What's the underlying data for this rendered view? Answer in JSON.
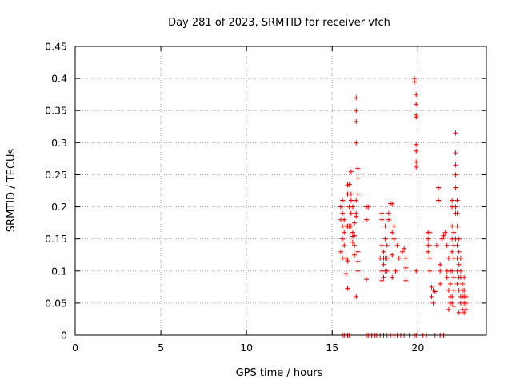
{
  "chart_data": {
    "type": "scatter",
    "title": "Day 281 of 2023, SRMTID for receiver vfch",
    "xlabel": "GPS time / hours",
    "ylabel": "SRMTID / TECUs",
    "xlim": [
      0,
      24
    ],
    "ylim": [
      0,
      0.45
    ],
    "grid": true,
    "grid_style": "dotted",
    "marker": "+",
    "color": "#ff0000",
    "x_ticks": [
      {
        "value": 0,
        "label": "0"
      },
      {
        "value": 5,
        "label": "5"
      },
      {
        "value": 10,
        "label": "10"
      },
      {
        "value": 15,
        "label": "15"
      },
      {
        "value": 20,
        "label": "20"
      }
    ],
    "y_ticks": [
      {
        "value": 0,
        "label": "0"
      },
      {
        "value": 0.05,
        "label": "0.05"
      },
      {
        "value": 0.1,
        "label": "0.1"
      },
      {
        "value": 0.15,
        "label": "0.15"
      },
      {
        "value": 0.2,
        "label": "0.2"
      },
      {
        "value": 0.25,
        "label": "0.25"
      },
      {
        "value": 0.3,
        "label": "0.3"
      },
      {
        "value": 0.35,
        "label": "0.35"
      },
      {
        "value": 0.4,
        "label": "0.4"
      },
      {
        "value": 0.45,
        "label": "0.45"
      }
    ],
    "points": [
      [
        15.5,
        0.2
      ],
      [
        15.5,
        0.18
      ],
      [
        15.5,
        0.13
      ],
      [
        15.6,
        0.21
      ],
      [
        15.6,
        0.19
      ],
      [
        15.6,
        0.17
      ],
      [
        15.6,
        0.15
      ],
      [
        15.6,
        0.12
      ],
      [
        15.7,
        0.18
      ],
      [
        15.7,
        0.16
      ],
      [
        15.7,
        0.14
      ],
      [
        15.8,
        0.17
      ],
      [
        15.8,
        0.12
      ],
      [
        15.8,
        0.096
      ],
      [
        15.9,
        0.22
      ],
      [
        15.9,
        0.17
      ],
      [
        15.9,
        0.116
      ],
      [
        15.9,
        0.073
      ],
      [
        15.9,
        0.234
      ],
      [
        16.0,
        0.235
      ],
      [
        16.0,
        0.2
      ],
      [
        16.0,
        0.17
      ],
      [
        16.1,
        0.255
      ],
      [
        16.1,
        0.22
      ],
      [
        16.1,
        0.21
      ],
      [
        16.1,
        0.19
      ],
      [
        16.1,
        0.17
      ],
      [
        16.2,
        0.2
      ],
      [
        16.2,
        0.16
      ],
      [
        16.2,
        0.154
      ],
      [
        16.2,
        0.145
      ],
      [
        16.3,
        0.175
      ],
      [
        16.3,
        0.155
      ],
      [
        16.3,
        0.14
      ],
      [
        16.3,
        0.125
      ],
      [
        16.4,
        0.37
      ],
      [
        16.4,
        0.35
      ],
      [
        16.4,
        0.333
      ],
      [
        16.4,
        0.3
      ],
      [
        16.4,
        0.21
      ],
      [
        16.4,
        0.19
      ],
      [
        16.4,
        0.185
      ],
      [
        16.5,
        0.26
      ],
      [
        16.5,
        0.245
      ],
      [
        16.5,
        0.22
      ],
      [
        16.5,
        0.13
      ],
      [
        16.5,
        0.1
      ],
      [
        16.5,
        0.115
      ],
      [
        16.4,
        0.06
      ],
      [
        17.0,
        0.2
      ],
      [
        17.1,
        0.2
      ],
      [
        17.0,
        0.087
      ],
      [
        17.0,
        0.18
      ],
      [
        17.9,
        0.19
      ],
      [
        17.9,
        0.18
      ],
      [
        17.8,
        0.12
      ],
      [
        17.9,
        0.14
      ],
      [
        17.9,
        0.1
      ],
      [
        17.9,
        0.085
      ],
      [
        18.0,
        0.13
      ],
      [
        18.0,
        0.11
      ],
      [
        18.0,
        0.09
      ],
      [
        18.0,
        0.12
      ],
      [
        18.1,
        0.17
      ],
      [
        18.1,
        0.15
      ],
      [
        18.1,
        0.12
      ],
      [
        18.1,
        0.1
      ],
      [
        18.2,
        0.14
      ],
      [
        18.2,
        0.12
      ],
      [
        18.2,
        0.1
      ],
      [
        18.3,
        0.19
      ],
      [
        18.3,
        0.18
      ],
      [
        18.4,
        0.205
      ],
      [
        18.5,
        0.205
      ],
      [
        18.5,
        0.16
      ],
      [
        18.5,
        0.125
      ],
      [
        18.5,
        0.09
      ],
      [
        18.6,
        0.17
      ],
      [
        18.6,
        0.15
      ],
      [
        18.7,
        0.1
      ],
      [
        18.8,
        0.14
      ],
      [
        18.9,
        0.12
      ],
      [
        19.1,
        0.13
      ],
      [
        19.2,
        0.135
      ],
      [
        19.3,
        0.12
      ],
      [
        19.3,
        0.105
      ],
      [
        19.3,
        0.085
      ],
      [
        19.8,
        0.4
      ],
      [
        19.8,
        0.395
      ],
      [
        19.9,
        0.375
      ],
      [
        19.9,
        0.36
      ],
      [
        19.9,
        0.343
      ],
      [
        19.9,
        0.34
      ],
      [
        19.9,
        0.297
      ],
      [
        19.9,
        0.287
      ],
      [
        19.9,
        0.27
      ],
      [
        19.9,
        0.262
      ],
      [
        19.9,
        0.1
      ],
      [
        20.6,
        0.16
      ],
      [
        20.6,
        0.15
      ],
      [
        20.6,
        0.14
      ],
      [
        20.6,
        0.13
      ],
      [
        20.7,
        0.16
      ],
      [
        20.7,
        0.14
      ],
      [
        20.7,
        0.12
      ],
      [
        20.7,
        0.1
      ],
      [
        20.8,
        0.075
      ],
      [
        20.8,
        0.06
      ],
      [
        20.9,
        0.07
      ],
      [
        20.9,
        0.05
      ],
      [
        21.0,
        0.068
      ],
      [
        21.1,
        0.14
      ],
      [
        21.2,
        0.23
      ],
      [
        21.2,
        0.21
      ],
      [
        21.3,
        0.11
      ],
      [
        21.3,
        0.1
      ],
      [
        21.3,
        0.08
      ],
      [
        21.4,
        0.15
      ],
      [
        21.5,
        0.155
      ],
      [
        21.6,
        0.16
      ],
      [
        21.7,
        0.14
      ],
      [
        21.7,
        0.1
      ],
      [
        21.7,
        0.09
      ],
      [
        21.8,
        0.12
      ],
      [
        21.8,
        0.07
      ],
      [
        21.8,
        0.04
      ],
      [
        21.9,
        0.08
      ],
      [
        21.9,
        0.06
      ],
      [
        21.9,
        0.05
      ],
      [
        21.9,
        0.1
      ],
      [
        22.0,
        0.21
      ],
      [
        22.0,
        0.2
      ],
      [
        22.0,
        0.17
      ],
      [
        22.0,
        0.15
      ],
      [
        22.0,
        0.13
      ],
      [
        22.0,
        0.1
      ],
      [
        22.1,
        0.16
      ],
      [
        22.1,
        0.14
      ],
      [
        22.1,
        0.12
      ],
      [
        22.1,
        0.09
      ],
      [
        22.1,
        0.07
      ],
      [
        22.2,
        0.315
      ],
      [
        22.2,
        0.284
      ],
      [
        22.2,
        0.265
      ],
      [
        22.2,
        0.25
      ],
      [
        22.2,
        0.23
      ],
      [
        22.2,
        0.2
      ],
      [
        22.2,
        0.19
      ],
      [
        22.2,
        0.15
      ],
      [
        22.3,
        0.21
      ],
      [
        22.3,
        0.19
      ],
      [
        22.3,
        0.17
      ],
      [
        22.3,
        0.14
      ],
      [
        22.3,
        0.12
      ],
      [
        22.3,
        0.1
      ],
      [
        22.3,
        0.08
      ],
      [
        22.4,
        0.15
      ],
      [
        22.4,
        0.13
      ],
      [
        22.4,
        0.11
      ],
      [
        22.4,
        0.09
      ],
      [
        22.4,
        0.07
      ],
      [
        22.5,
        0.12
      ],
      [
        22.5,
        0.1
      ],
      [
        22.5,
        0.09
      ],
      [
        22.5,
        0.06
      ],
      [
        22.5,
        0.05
      ],
      [
        22.6,
        0.08
      ],
      [
        22.6,
        0.07
      ],
      [
        22.6,
        0.06
      ],
      [
        22.6,
        0.04
      ],
      [
        22.7,
        0.09
      ],
      [
        22.7,
        0.07
      ],
      [
        22.7,
        0.06
      ],
      [
        22.7,
        0.05
      ],
      [
        22.8,
        0.06
      ],
      [
        22.8,
        0.05
      ],
      [
        22.8,
        0.04
      ],
      [
        22.0,
        0.06
      ],
      [
        22.0,
        0.05
      ],
      [
        22.1,
        0.045
      ],
      [
        22.4,
        0.035
      ],
      [
        22.7,
        0.035
      ],
      [
        15.6,
        0
      ],
      [
        15.7,
        0
      ],
      [
        15.9,
        0
      ],
      [
        16.0,
        0
      ],
      [
        17.0,
        0
      ],
      [
        17.1,
        0
      ],
      [
        17.3,
        0
      ],
      [
        17.5,
        0
      ],
      [
        17.6,
        0
      ],
      [
        17.8,
        0
      ],
      [
        18.0,
        0
      ],
      [
        18.2,
        0
      ],
      [
        18.4,
        0
      ],
      [
        18.6,
        0
      ],
      [
        18.8,
        0
      ],
      [
        19.0,
        0
      ],
      [
        19.2,
        0
      ],
      [
        19.5,
        0
      ],
      [
        19.8,
        0
      ],
      [
        19.9,
        0
      ],
      [
        20.3,
        0
      ],
      [
        20.5,
        0
      ],
      [
        21.0,
        0
      ],
      [
        21.3,
        0
      ],
      [
        21.5,
        0
      ]
    ]
  }
}
